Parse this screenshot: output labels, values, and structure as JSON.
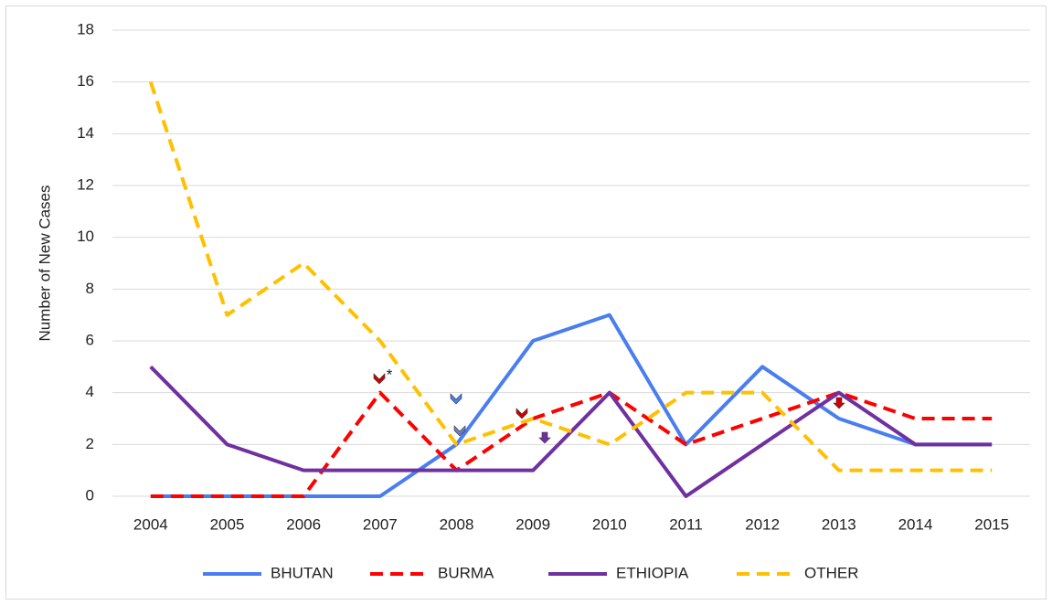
{
  "chart_data": {
    "type": "line",
    "y_axis_label": "Number of New Cases",
    "categories": [
      "2004",
      "2005",
      "2006",
      "2007",
      "2008",
      "2009",
      "2010",
      "2011",
      "2012",
      "2013",
      "2014",
      "2015"
    ],
    "series": [
      {
        "name": "BHUTAN",
        "color": "#4a7ef0",
        "line_style": "solid",
        "values": [
          0,
          0,
          0,
          0,
          2,
          6,
          7,
          2,
          5,
          3,
          2,
          2
        ]
      },
      {
        "name": "BURMA",
        "color": "#ff0000",
        "line_style": "dashed",
        "values": [
          0,
          0,
          0,
          4,
          1,
          3,
          4,
          2,
          3,
          4,
          3,
          3
        ]
      },
      {
        "name": "ETHIOPIA",
        "color": "#7030a0",
        "line_style": "solid",
        "values": [
          5,
          2,
          1,
          1,
          1,
          1,
          4,
          0,
          2,
          4,
          2,
          2
        ]
      },
      {
        "name": "OTHER",
        "color": "#ffc000",
        "line_style": "dashed",
        "values": [
          16,
          7,
          9,
          6,
          2,
          3,
          2,
          4,
          4,
          1,
          1,
          1
        ]
      }
    ],
    "annotations": [
      {
        "text": "*"
      }
    ],
    "ylim": [
      0,
      18
    ],
    "yticks": [
      0,
      2,
      4,
      6,
      8,
      10,
      12,
      14,
      16,
      18
    ],
    "grid": true,
    "legend": "bottom"
  }
}
